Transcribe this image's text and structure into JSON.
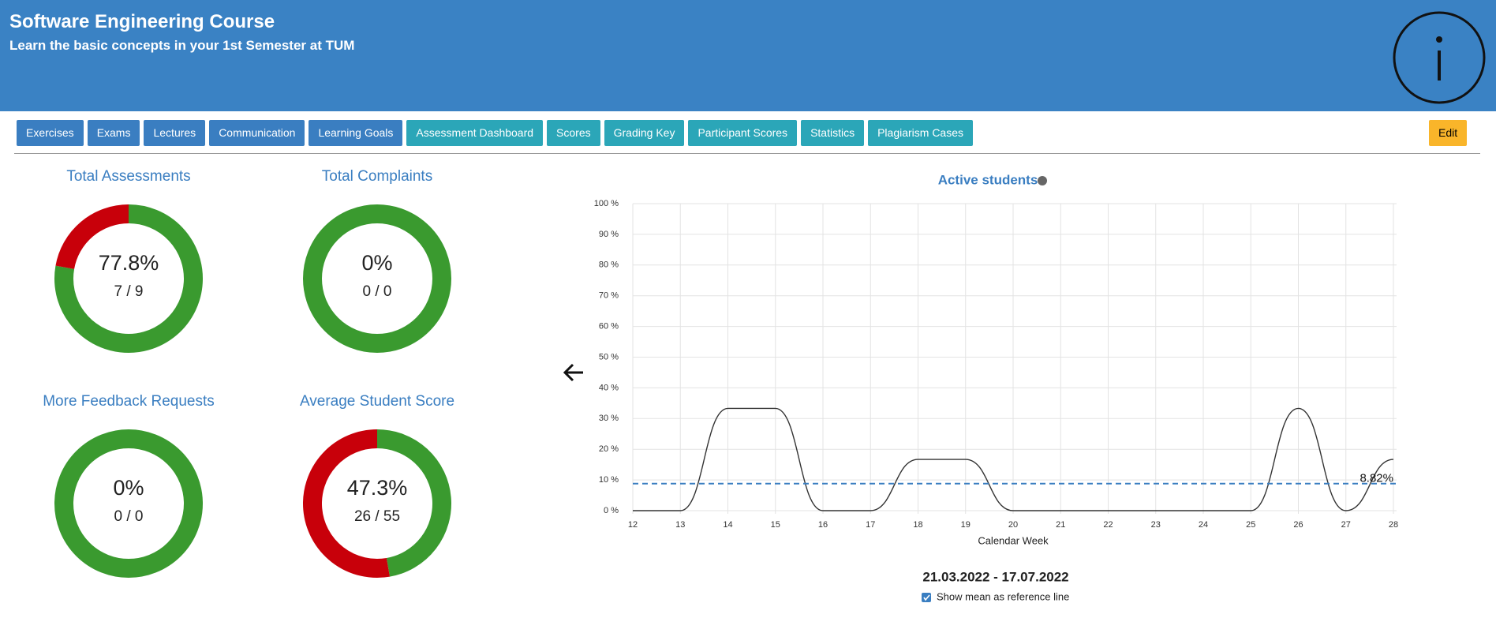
{
  "header": {
    "title": "Software Engineering Course",
    "subtitle": "Learn the basic concepts in your 1st Semester at TUM"
  },
  "nav": [
    "Exercises",
    "Exams",
    "Lectures",
    "Communication",
    "Learning Goals",
    "Assessment Dashboard",
    "Scores",
    "Grading Key",
    "Participant Scores",
    "Statistics",
    "Plagiarism Cases"
  ],
  "edit": "Edit",
  "donuts": [
    {
      "title": "Total Assessments",
      "percent_label": "77.8%",
      "fraction_label": "7 / 9",
      "done": 7,
      "total": 9
    },
    {
      "title": "Total Complaints",
      "percent_label": "0%",
      "fraction_label": "0 / 0",
      "done": 0,
      "total": 0
    },
    {
      "title": "More Feedback Requests",
      "percent_label": "0%",
      "fraction_label": "0 / 0",
      "done": 0,
      "total": 0
    },
    {
      "title": "Average Student Score",
      "percent_label": "47.3%",
      "fraction_label": "26 / 55",
      "done": 26,
      "total": 55
    }
  ],
  "chart_data": {
    "type": "line",
    "title": "Active students",
    "x_label": "Calendar Week",
    "x": [
      12,
      13,
      14,
      15,
      16,
      17,
      18,
      19,
      20,
      21,
      22,
      23,
      24,
      25,
      26,
      27,
      28
    ],
    "values": [
      0,
      0,
      33.3,
      33.3,
      0,
      0,
      16.7,
      16.7,
      0,
      0,
      0,
      0,
      0,
      0,
      33.3,
      0,
      16.7
    ],
    "color": "#333333",
    "xlim": [
      12,
      28
    ],
    "xticks": [
      12,
      13,
      14,
      15,
      16,
      17,
      18,
      19,
      20,
      21,
      22,
      23,
      24,
      25,
      26,
      27,
      28
    ],
    "ylim": [
      0,
      100
    ],
    "yticks": [
      {
        "value": 0,
        "label": "0 %"
      },
      {
        "value": 10,
        "label": "10 %"
      },
      {
        "value": 20,
        "label": "20 %"
      },
      {
        "value": 30,
        "label": "30 %"
      },
      {
        "value": 40,
        "label": "40 %"
      },
      {
        "value": 50,
        "label": "50 %"
      },
      {
        "value": 60,
        "label": "60 %"
      },
      {
        "value": 70,
        "label": "70 %"
      },
      {
        "value": 80,
        "label": "80 %"
      },
      {
        "value": 90,
        "label": "90 %"
      },
      {
        "value": 100,
        "label": "100 %"
      }
    ],
    "grid": true,
    "mean": {
      "value": 8.82,
      "label": "8.82%",
      "color": "#3a7ec1"
    }
  },
  "date_range": "21.03.2022 - 17.07.2022",
  "checkbox_label": "Show mean as reference line"
}
